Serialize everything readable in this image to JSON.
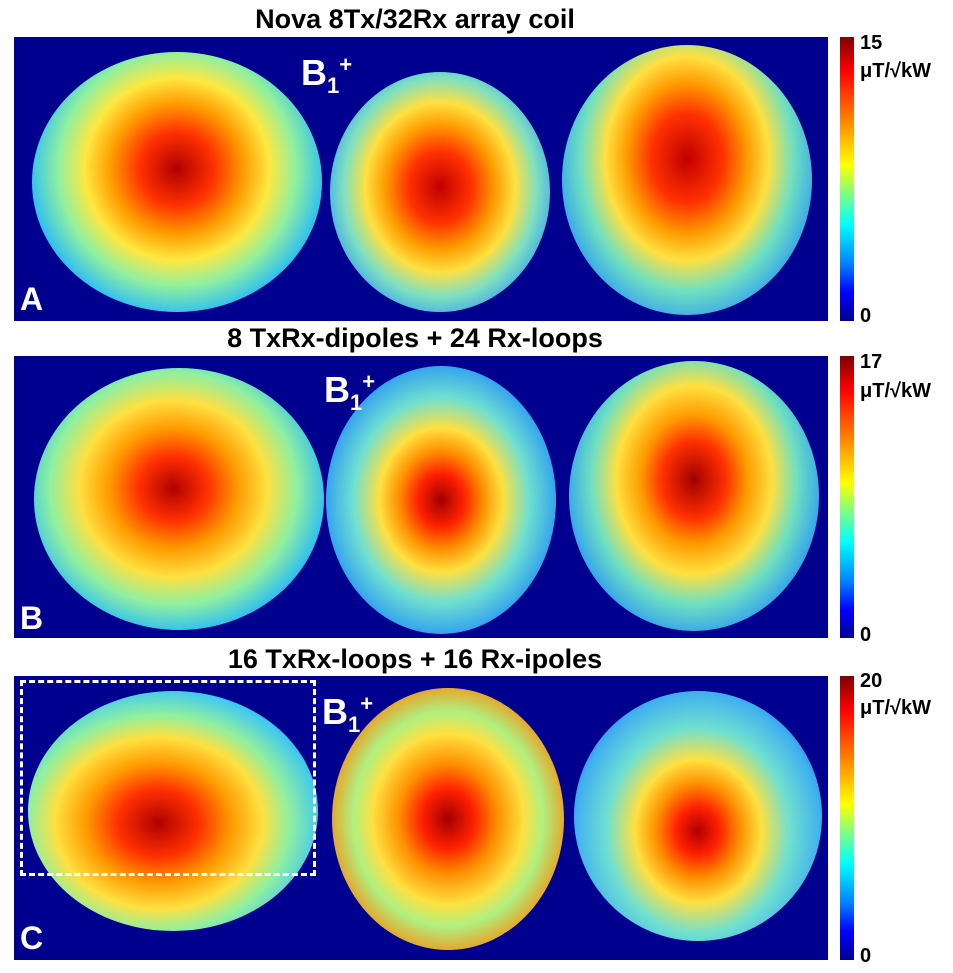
{
  "rows": [
    {
      "title": "Nova 8Tx/32Rx array coil",
      "letter": "A",
      "cbar_max": "15",
      "cbar_min": "0",
      "unit": "μT/√kW"
    },
    {
      "title": "8 TxRx-dipoles + 24 Rx-loops",
      "letter": "B",
      "cbar_max": "17",
      "cbar_min": "0",
      "unit": "μT/√kW"
    },
    {
      "title": "16 TxRx-loops + 16 Rx-ipoles",
      "letter": "C",
      "cbar_max": "20",
      "cbar_min": "0",
      "unit": "μT/√kW"
    }
  ],
  "b1_label": {
    "base": "B",
    "sub": "1",
    "sup": "+"
  },
  "colors": {
    "background_map": "#00008f",
    "hot": "#c00000",
    "warm": "#ff8a00",
    "mid": "#ffff40",
    "cool": "#40e0e0"
  }
}
